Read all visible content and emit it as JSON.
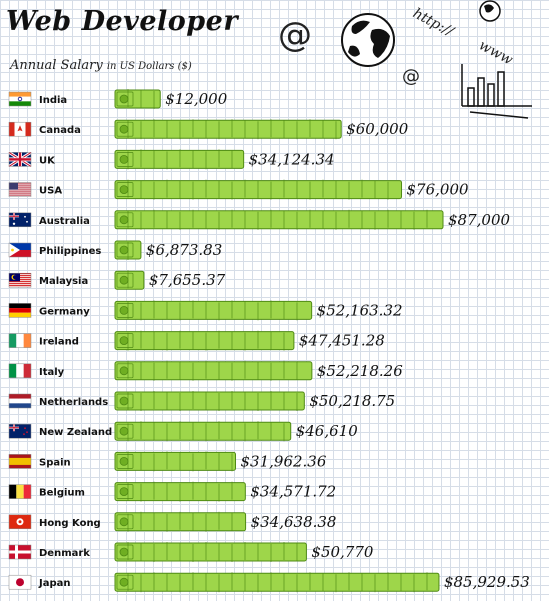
{
  "header": {
    "title": "Web Developer",
    "subtitle_main": "Annual Salary",
    "subtitle_small": "in US Dollars ($)"
  },
  "doodles": {
    "at_symbol": "@",
    "http_text": "http://",
    "www_text": "www"
  },
  "colors": {
    "bill_fill": "#9ed64a",
    "bill_stroke": "#4f8a14",
    "bill_center": "#6fae22"
  },
  "chart_data": {
    "type": "bar",
    "title": "Web Developer",
    "subtitle": "Annual Salary in US Dollars ($)",
    "xlabel": "",
    "ylabel": "",
    "xlim": [
      0,
      87000
    ],
    "categories": [
      "India",
      "Canada",
      "UK",
      "USA",
      "Australia",
      "Philippines",
      "Malaysia",
      "Germany",
      "Ireland",
      "Italy",
      "Netherlands",
      "New Zealand",
      "Spain",
      "Belgium",
      "Hong Kong",
      "Denmark",
      "Japan"
    ],
    "values": [
      12000,
      60000,
      34124.34,
      76000,
      87000,
      6873.83,
      7655.37,
      52163.32,
      47451.28,
      52218.26,
      50218.75,
      46610,
      31962.36,
      34571.72,
      34638.38,
      50770,
      85929.53
    ],
    "value_labels": [
      "$12,000",
      "$60,000",
      "$34,124.34",
      "$76,000",
      "$87,000",
      "$6,873.83",
      "$7,655.37",
      "$52,163.32",
      "$47,451.28",
      "$52,218.26",
      "$50,218.75",
      "$46,610",
      "$31,962.36",
      "$34,571.72",
      "$34,638.38",
      "$50,770",
      "$85,929.53"
    ],
    "flags": [
      "in",
      "ca",
      "uk",
      "us",
      "au",
      "ph",
      "my",
      "de",
      "ie",
      "it",
      "nl",
      "nz",
      "es",
      "be",
      "hk",
      "dk",
      "jp"
    ],
    "grid": true,
    "legend": "none"
  }
}
